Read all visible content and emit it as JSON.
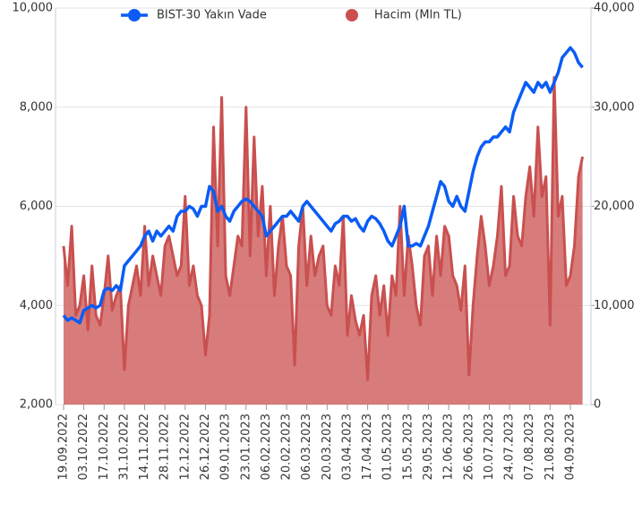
{
  "chart_data": {
    "type": "line-area",
    "categories": [
      "19.09.2022",
      null,
      null,
      null,
      null,
      "03.10.2022",
      null,
      null,
      null,
      null,
      "17.10.2022",
      null,
      null,
      null,
      null,
      "31.10.2022",
      null,
      null,
      null,
      null,
      "14.11.2022",
      null,
      null,
      null,
      null,
      "28.11.2022",
      null,
      null,
      null,
      null,
      "12.12.2022",
      null,
      null,
      null,
      null,
      "26.12.2022",
      null,
      null,
      null,
      null,
      "09.01.2023",
      null,
      null,
      null,
      null,
      "23.01.2023",
      null,
      null,
      null,
      null,
      "06.02.2023",
      null,
      null,
      null,
      null,
      "20.02.2023",
      null,
      null,
      null,
      null,
      "06.03.2023",
      null,
      null,
      null,
      null,
      "20.03.2023",
      null,
      null,
      null,
      null,
      "03.04.2023",
      null,
      null,
      null,
      null,
      "17.04.2023",
      null,
      null,
      null,
      null,
      "01.05.2023",
      null,
      null,
      null,
      null,
      "15.05.2023",
      null,
      null,
      null,
      null,
      "29.05.2023",
      null,
      null,
      null,
      null,
      "12.06.2023",
      null,
      null,
      null,
      null,
      "26.06.2023",
      null,
      null,
      null,
      null,
      "10.07.2023",
      null,
      null,
      null,
      null,
      "24.07.2023",
      null,
      null,
      null,
      null,
      "07.08.2023",
      null,
      null,
      null,
      null,
      "21.08.2023",
      null,
      null,
      null,
      null,
      "04.09.2023",
      null,
      null,
      null
    ],
    "series": [
      {
        "name": "BIST-30 Yakın Vade",
        "color": "#0a5cf5",
        "axis": "y",
        "values": [
          3800,
          3700,
          3750,
          3700,
          3650,
          3900,
          3950,
          4000,
          3950,
          4000,
          4300,
          4350,
          4300,
          4400,
          4300,
          4800,
          4900,
          5000,
          5100,
          5200,
          5400,
          5500,
          5300,
          5500,
          5400,
          5500,
          5600,
          5500,
          5800,
          5900,
          5900,
          6000,
          5950,
          5800,
          6000,
          6000,
          6400,
          6300,
          5900,
          6000,
          5800,
          5700,
          5900,
          6000,
          6100,
          6150,
          6100,
          6000,
          5900,
          5800,
          5400,
          5500,
          5600,
          5700,
          5800,
          5800,
          5900,
          5800,
          5700,
          6000,
          6100,
          6000,
          5900,
          5800,
          5700,
          5600,
          5500,
          5650,
          5700,
          5800,
          5800,
          5700,
          5750,
          5600,
          5500,
          5700,
          5800,
          5750,
          5650,
          5500,
          5300,
          5200,
          5400,
          5600,
          6000,
          5200,
          5200,
          5250,
          5200,
          5400,
          5600,
          5900,
          6200,
          6500,
          6400,
          6100,
          6000,
          6200,
          6000,
          5900,
          6300,
          6700,
          7000,
          7200,
          7300,
          7300,
          7400,
          7400,
          7500,
          7600,
          7500,
          7900,
          8100,
          8300,
          8500,
          8400,
          8300,
          8500,
          8400,
          8500,
          8300,
          8500,
          8700,
          9000,
          9100,
          9200,
          9100,
          8900,
          8800
        ]
      },
      {
        "name": "Hacim (Mln TL)",
        "color": "#c9504f",
        "axis": "y2",
        "values": [
          16000,
          12000,
          18000,
          9000,
          10000,
          13000,
          7500,
          14000,
          9000,
          8000,
          11000,
          15000,
          9500,
          11000,
          12000,
          3500,
          10000,
          12000,
          14000,
          11000,
          18000,
          12000,
          15000,
          13000,
          11000,
          16000,
          17000,
          15000,
          13000,
          14000,
          21000,
          12000,
          14000,
          11000,
          10000,
          5000,
          9000,
          28000,
          16000,
          31000,
          13000,
          11000,
          14000,
          17000,
          16000,
          30000,
          15000,
          27000,
          17000,
          22000,
          13000,
          20000,
          11000,
          16000,
          19000,
          14000,
          13000,
          4000,
          16000,
          20000,
          12000,
          17000,
          13000,
          15000,
          16000,
          10000,
          9000,
          14000,
          12000,
          19000,
          7000,
          11000,
          8500,
          7000,
          9000,
          2500,
          11000,
          13000,
          9000,
          12000,
          7000,
          13000,
          11000,
          20000,
          11000,
          17000,
          14000,
          10000,
          8000,
          15000,
          16000,
          11000,
          17000,
          13000,
          18000,
          17000,
          13000,
          12000,
          9500,
          14000,
          3000,
          10000,
          15000,
          19000,
          16000,
          12000,
          14000,
          17000,
          22000,
          13000,
          14000,
          21000,
          17000,
          16000,
          21000,
          24000,
          19000,
          28000,
          21000,
          23000,
          8000,
          33000,
          19000,
          21000,
          12000,
          13000,
          16000,
          23000,
          25000
        ]
      }
    ],
    "ylim": [
      2000,
      10000
    ],
    "yticks": [
      {
        "value": 2000,
        "label": "2,000"
      },
      {
        "value": 4000,
        "label": "4,000"
      },
      {
        "value": 6000,
        "label": "6,000"
      },
      {
        "value": 8000,
        "label": "8,000"
      },
      {
        "value": 10000,
        "label": "10,000"
      }
    ],
    "y2lim": [
      0,
      40000
    ],
    "y2ticks": [
      0,
      {
        "value": 10000,
        "label": "10,000"
      },
      {
        "value": 20000,
        "label": "20,000"
      },
      {
        "value": 30000,
        "label": "30,000"
      },
      {
        "value": 40000,
        "label": "40,000"
      }
    ],
    "grid": true,
    "legend": "top"
  }
}
